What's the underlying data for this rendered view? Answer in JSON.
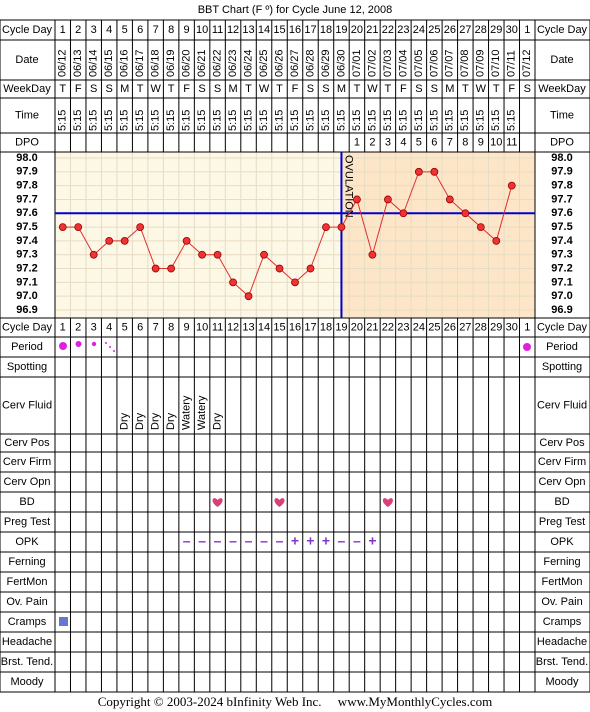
{
  "title": "BBT Chart (F º) for Cycle June 12, 2008",
  "row_labels": {
    "top": [
      "Cycle Day",
      "Date",
      "WeekDay",
      "Time",
      "DPO"
    ],
    "bottom": [
      "Cycle Day",
      "Period",
      "Spotting",
      "Cerv Fluid",
      "Cerv Pos",
      "Cerv Firm",
      "Cerv Opn",
      "BD",
      "Preg Test",
      "OPK",
      "Ferning",
      "FertMon",
      "Ov. Pain",
      "Cramps",
      "Headache",
      "Brst. Tend.",
      "Moody"
    ]
  },
  "cycle_days": [
    1,
    2,
    3,
    4,
    5,
    6,
    7,
    8,
    9,
    10,
    11,
    12,
    13,
    14,
    15,
    16,
    17,
    18,
    19,
    20,
    21,
    22,
    23,
    24,
    25,
    26,
    27,
    28,
    29,
    30,
    1
  ],
  "dates": [
    "06/12",
    "06/13",
    "06/14",
    "06/15",
    "06/16",
    "06/17",
    "06/18",
    "06/19",
    "06/20",
    "06/21",
    "06/22",
    "06/23",
    "06/24",
    "06/25",
    "06/26",
    "06/27",
    "06/28",
    "06/29",
    "06/30",
    "07/01",
    "07/02",
    "07/03",
    "07/04",
    "07/05",
    "07/06",
    "07/07",
    "07/08",
    "07/09",
    "07/10",
    "07/11",
    "07/12"
  ],
  "weekdays": [
    "T",
    "F",
    "S",
    "S",
    "M",
    "T",
    "W",
    "T",
    "F",
    "S",
    "S",
    "M",
    "T",
    "W",
    "T",
    "F",
    "S",
    "S",
    "M",
    "T",
    "W",
    "T",
    "F",
    "S",
    "S",
    "M",
    "T",
    "W",
    "T",
    "F",
    "S"
  ],
  "times": [
    "5:15",
    "5:15",
    "5:15",
    "5:15",
    "5:15",
    "5:15",
    "5:15",
    "5:15",
    "5:15",
    "5:15",
    "5:15",
    "5:15",
    "5:15",
    "5:15",
    "5:15",
    "5:15",
    "5:15",
    "5:15",
    "5:15",
    "5:15",
    "5:15",
    "5:15",
    "5:15",
    "5:15",
    "5:15",
    "5:15",
    "5:15",
    "5:15",
    "5:15",
    "5:15",
    null
  ],
  "dpo": [
    null,
    null,
    null,
    null,
    null,
    null,
    null,
    null,
    null,
    null,
    null,
    null,
    null,
    null,
    null,
    null,
    null,
    null,
    null,
    1,
    2,
    3,
    4,
    5,
    6,
    7,
    8,
    9,
    10,
    11,
    null
  ],
  "temperature": {
    "ylim": [
      96.9,
      98.0
    ],
    "yticks": [
      {
        "value": 98.0,
        "label": "98.0"
      },
      97.9,
      97.8,
      97.7,
      97.6,
      97.5,
      97.4,
      97.3,
      97.2,
      97.1,
      {
        "value": 97.0,
        "label": "97.0"
      },
      96.9
    ],
    "values": [
      97.5,
      97.5,
      97.3,
      97.4,
      97.4,
      97.5,
      97.2,
      97.2,
      97.4,
      97.3,
      97.3,
      97.1,
      97.0,
      97.3,
      97.2,
      97.1,
      97.2,
      97.5,
      97.5,
      97.7,
      97.3,
      97.7,
      97.6,
      97.9,
      97.9,
      97.7,
      97.6,
      97.5,
      97.4,
      97.8,
      null
    ],
    "coverline": 97.6,
    "ovulation_label": "OVULATION"
  },
  "cerv_fluid": [
    null,
    null,
    null,
    null,
    "Dry",
    "Dry",
    "Dry",
    "Dry",
    "Watery",
    "Watery",
    "Dry",
    null,
    null,
    null,
    null,
    null,
    null,
    null,
    null,
    null,
    null,
    null,
    null,
    null,
    null,
    null,
    null,
    null,
    null,
    null,
    null
  ],
  "opk": [
    null,
    null,
    null,
    null,
    null,
    null,
    null,
    null,
    "–",
    "–",
    "–",
    "–",
    "–",
    "–",
    "–",
    "+",
    "+",
    "+",
    "–",
    "–",
    "+",
    null,
    null,
    null,
    null,
    null,
    null,
    null,
    null,
    null,
    null
  ],
  "footer": "Copyright © 2003-2024 bInfinity Web Inc.     www.MyMonthlyCycles.com"
}
